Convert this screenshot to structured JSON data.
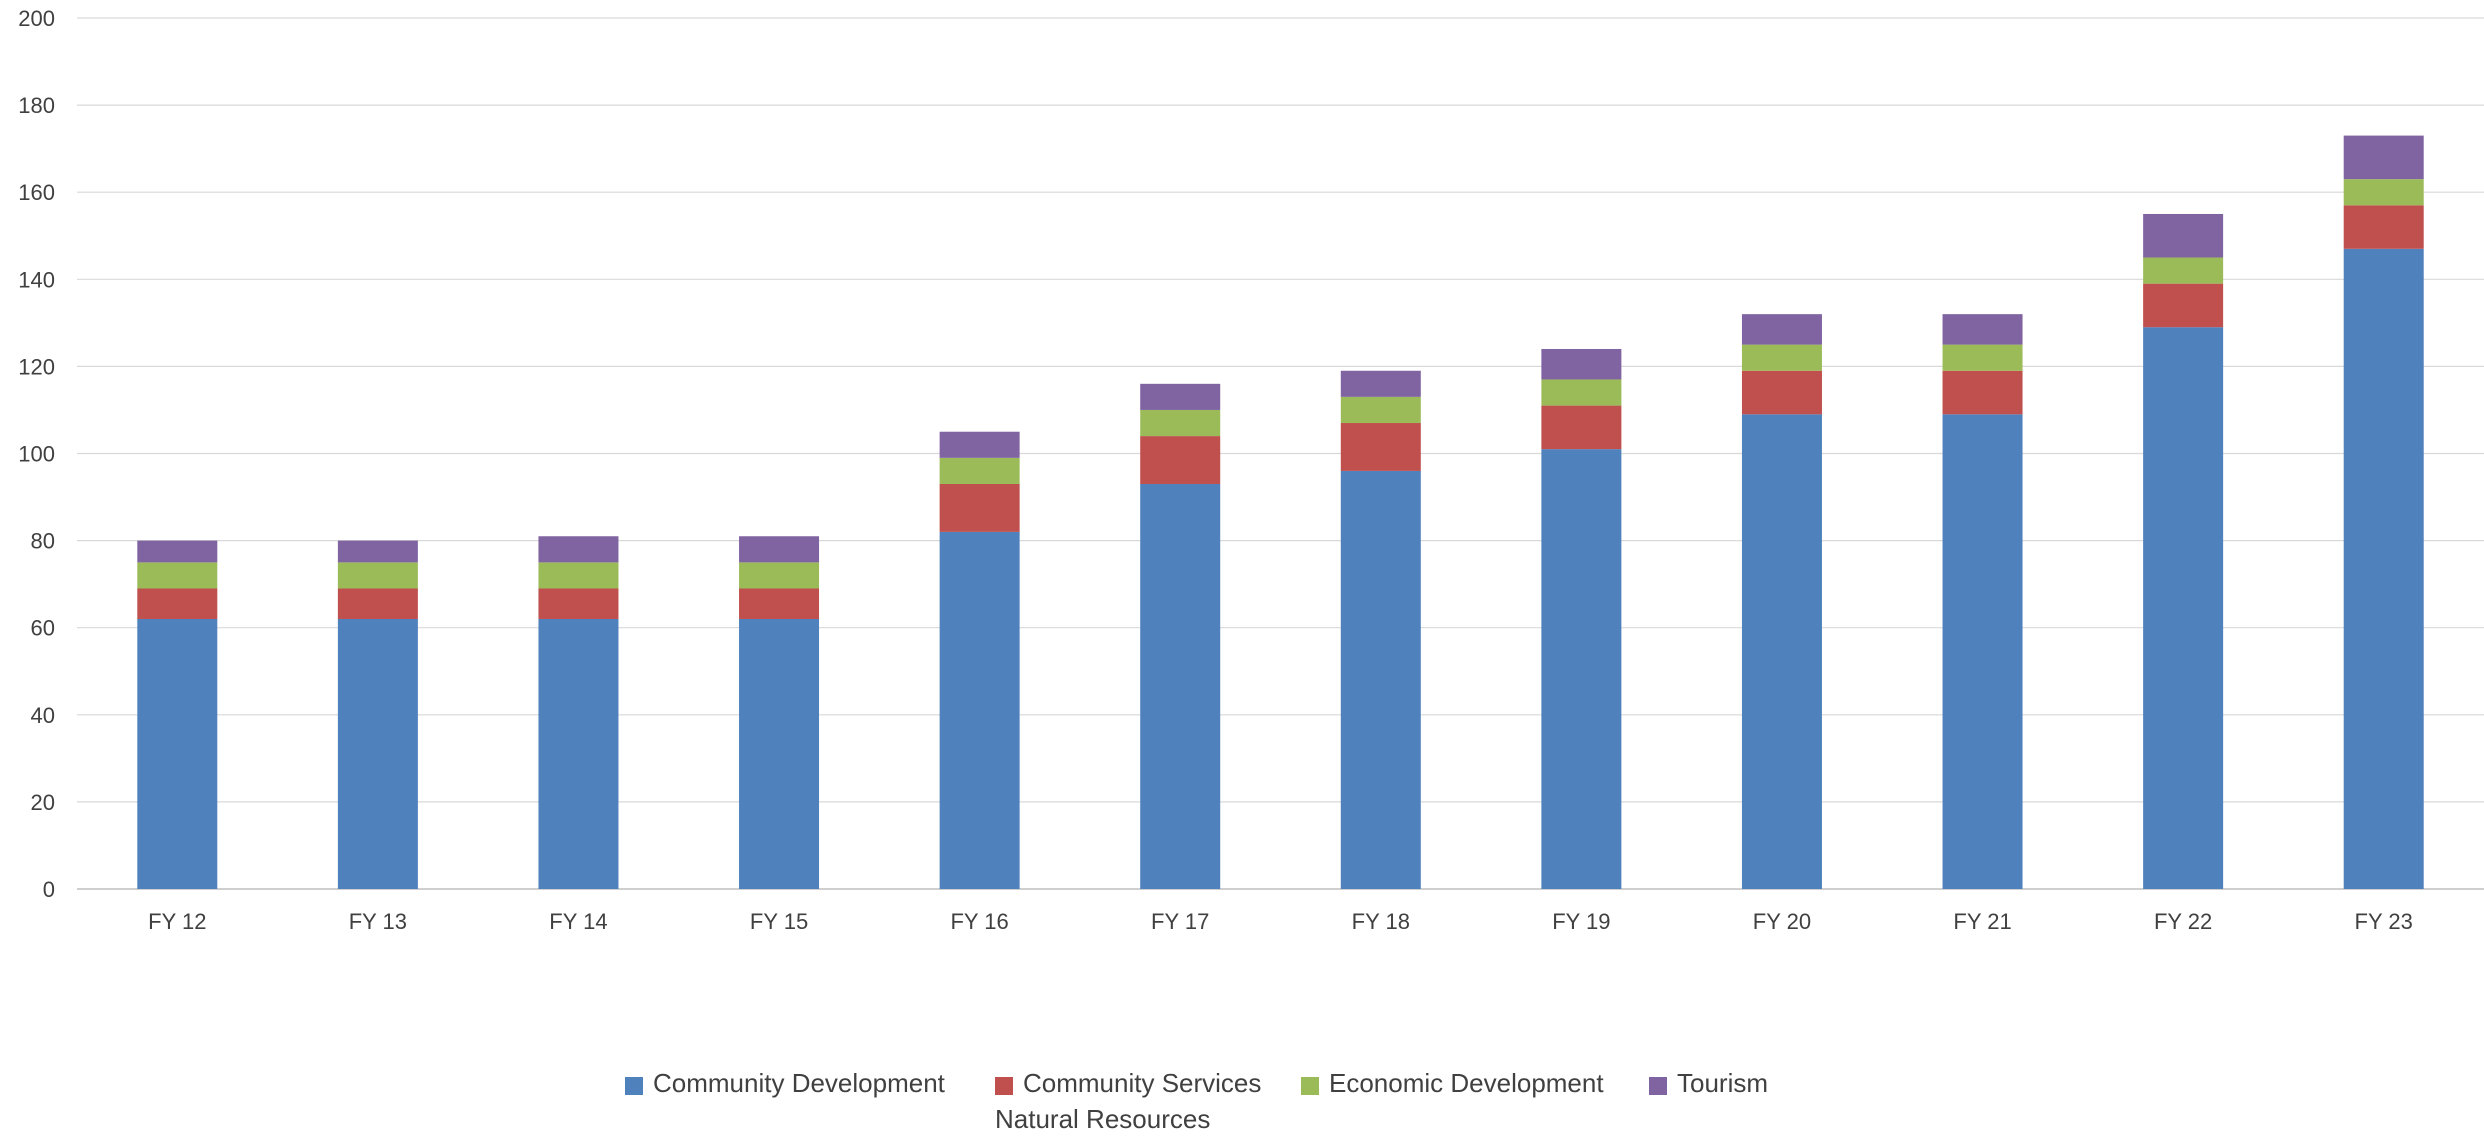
{
  "chart_data": {
    "type": "bar",
    "stacked": true,
    "title": "",
    "xlabel": "",
    "ylabel": "",
    "categories": [
      "FY 12",
      "FY 13",
      "FY 14",
      "FY 15",
      "FY 16",
      "FY 17",
      "FY 18",
      "FY 19",
      "FY 20",
      "FY 21",
      "FY 22",
      "FY 23"
    ],
    "ylim": [
      0,
      200
    ],
    "yticks": [
      0,
      20,
      40,
      60,
      80,
      100,
      120,
      140,
      160,
      180,
      200
    ],
    "grid": true,
    "legend_position": "bottom",
    "series": [
      {
        "name": "Community Development",
        "color": "#4f81bd",
        "values": [
          62,
          62,
          62,
          62,
          82,
          93,
          96,
          101,
          109,
          109,
          129,
          147
        ]
      },
      {
        "name": "Community Services",
        "color": "#c0504d",
        "values": [
          7,
          7,
          7,
          7,
          11,
          11,
          11,
          10,
          10,
          10,
          10,
          10
        ]
      },
      {
        "name": "Economic Development",
        "color": "#9bbb59",
        "values": [
          6,
          6,
          6,
          6,
          6,
          6,
          6,
          6,
          6,
          6,
          6,
          6
        ]
      },
      {
        "name": "Tourism",
        "color": "#8064a2",
        "values": [
          5,
          5,
          6,
          6,
          6,
          6,
          6,
          7,
          7,
          7,
          10,
          10
        ]
      },
      {
        "name": "Natural Resources",
        "color": "#4bacc6",
        "values": [
          0,
          0,
          0,
          0,
          0,
          0,
          0,
          0,
          0,
          0,
          0,
          0
        ]
      }
    ]
  }
}
